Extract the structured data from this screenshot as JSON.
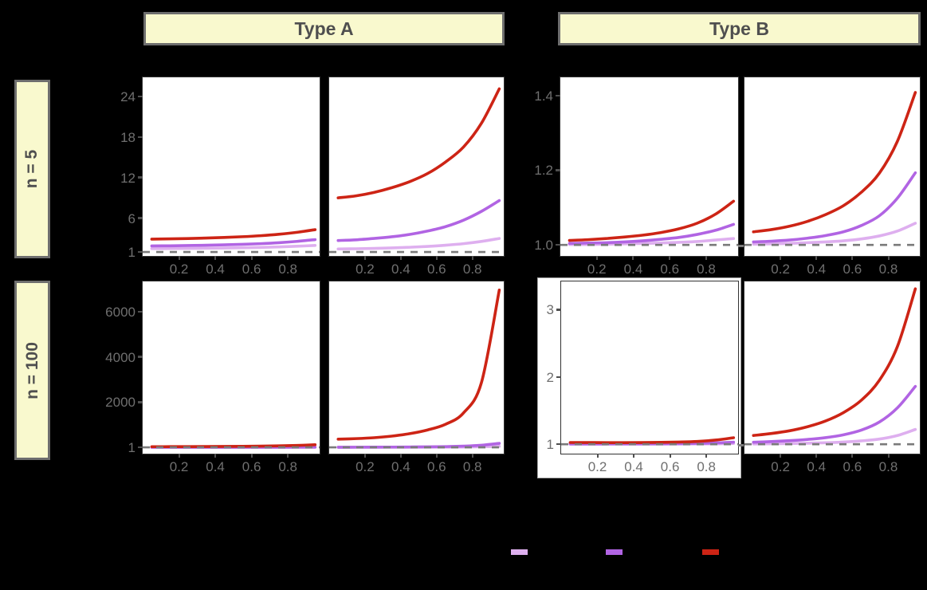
{
  "figure": {
    "background": "#000000",
    "col_strips": [
      {
        "label": "Type A"
      },
      {
        "label": "Type B"
      }
    ],
    "row_strips": [
      {
        "label": "n = 5"
      },
      {
        "label": "n = 100"
      }
    ]
  },
  "colors": {
    "strip_fill": "#f9f9ce",
    "strip_border": "#6e6e6e",
    "strip_text": "#4f4f4f",
    "panel_bg": "#ffffff",
    "panel_border": "#333333",
    "tick_text": "#6f6f6f",
    "tick_mark": "#4f4f4f",
    "ref_line": "#7a7a7a",
    "series_light_purple": "#deafef",
    "series_purple": "#b164e3",
    "series_red": "#cd2415"
  },
  "axes": {
    "xlim": [
      0,
      0.975
    ],
    "x_ticks": [
      0.2,
      0.4,
      0.6,
      0.8
    ],
    "x_tick_labels": [
      "0.2",
      "0.4",
      "0.6",
      "0.8"
    ]
  },
  "legend": {
    "items": [
      {
        "name": "series-light-purple",
        "color": "#deafef"
      },
      {
        "name": "series-purple",
        "color": "#b164e3"
      },
      {
        "name": "series-red",
        "color": "#cd2415"
      }
    ]
  },
  "chart_data": [
    {
      "id": "A1",
      "type": "line",
      "facet_row": "n = 5",
      "facet_col": "Type A",
      "ylim": [
        0.42,
        26.8
      ],
      "ref_line": 1,
      "yticks": [
        {
          "v": 1,
          "label": "1"
        },
        {
          "v": 6,
          "label": "6"
        },
        {
          "v": 12,
          "label": "12"
        },
        {
          "v": 18,
          "label": "18"
        },
        {
          "v": 24,
          "label": "24"
        }
      ],
      "x": [
        0.05,
        0.15,
        0.25,
        0.35,
        0.45,
        0.55,
        0.65,
        0.75,
        0.85,
        0.95
      ],
      "series": [
        {
          "name": "series-light-purple",
          "color": "#deafef",
          "values": [
            1.5,
            1.51,
            1.53,
            1.56,
            1.59,
            1.63,
            1.68,
            1.75,
            1.85,
            1.97
          ]
        },
        {
          "name": "series-purple",
          "color": "#b164e3",
          "values": [
            1.9,
            1.92,
            1.96,
            2.0,
            2.06,
            2.13,
            2.23,
            2.37,
            2.57,
            2.83
          ]
        },
        {
          "name": "series-red",
          "color": "#cd2415",
          "values": [
            2.9,
            2.94,
            2.99,
            3.06,
            3.15,
            3.26,
            3.41,
            3.62,
            3.91,
            4.3
          ]
        }
      ]
    },
    {
      "id": "A2",
      "type": "line",
      "facet_row": "n = 5",
      "facet_col": "Type A",
      "ylim": [
        0.42,
        26.8
      ],
      "ref_line": 1,
      "yticks": [],
      "x": [
        0.05,
        0.15,
        0.25,
        0.35,
        0.45,
        0.55,
        0.65,
        0.75,
        0.85,
        0.95
      ],
      "series": [
        {
          "name": "series-light-purple",
          "color": "#deafef",
          "values": [
            1.45,
            1.48,
            1.53,
            1.6,
            1.7,
            1.83,
            2.0,
            2.23,
            2.56,
            3.0
          ]
        },
        {
          "name": "series-purple",
          "color": "#b164e3",
          "values": [
            2.7,
            2.8,
            3.0,
            3.25,
            3.6,
            4.1,
            4.75,
            5.7,
            7.0,
            8.6
          ]
        },
        {
          "name": "series-red",
          "color": "#cd2415",
          "values": [
            9.0,
            9.3,
            9.8,
            10.5,
            11.4,
            12.6,
            14.3,
            16.5,
            20.0,
            25.1
          ]
        }
      ]
    },
    {
      "id": "B1",
      "type": "line",
      "facet_row": "n = 5",
      "facet_col": "Type B",
      "ylim": [
        0.9705,
        1.4485
      ],
      "ref_line": 1,
      "yticks": [
        {
          "v": 1.0,
          "label": "1.0"
        },
        {
          "v": 1.2,
          "label": "1.2"
        },
        {
          "v": 1.4,
          "label": "1.4"
        }
      ],
      "x": [
        0.05,
        0.15,
        0.25,
        0.35,
        0.45,
        0.55,
        0.65,
        0.75,
        0.85,
        0.95
      ],
      "series": [
        {
          "name": "series-light-purple",
          "color": "#deafef",
          "values": [
            1.001,
            1.001,
            1.002,
            1.003,
            1.004,
            1.005,
            1.007,
            1.009,
            1.013,
            1.017
          ]
        },
        {
          "name": "series-purple",
          "color": "#b164e3",
          "values": [
            1.004,
            1.005,
            1.006,
            1.008,
            1.011,
            1.015,
            1.02,
            1.028,
            1.039,
            1.055
          ]
        },
        {
          "name": "series-red",
          "color": "#cd2415",
          "values": [
            1.012,
            1.014,
            1.017,
            1.021,
            1.026,
            1.033,
            1.043,
            1.058,
            1.082,
            1.117
          ]
        }
      ]
    },
    {
      "id": "B2",
      "type": "line",
      "facet_row": "n = 5",
      "facet_col": "Type B",
      "ylim": [
        0.9705,
        1.4485
      ],
      "ref_line": 1,
      "yticks": [],
      "x": [
        0.05,
        0.15,
        0.25,
        0.35,
        0.45,
        0.55,
        0.65,
        0.75,
        0.85,
        0.95
      ],
      "series": [
        {
          "name": "series-light-purple",
          "color": "#deafef",
          "values": [
            1.002,
            1.003,
            1.004,
            1.006,
            1.008,
            1.011,
            1.016,
            1.024,
            1.037,
            1.058
          ]
        },
        {
          "name": "series-purple",
          "color": "#b164e3",
          "values": [
            1.008,
            1.01,
            1.013,
            1.018,
            1.025,
            1.035,
            1.052,
            1.078,
            1.125,
            1.193
          ]
        },
        {
          "name": "series-red",
          "color": "#cd2415",
          "values": [
            1.035,
            1.041,
            1.05,
            1.063,
            1.081,
            1.105,
            1.141,
            1.192,
            1.277,
            1.408
          ]
        }
      ]
    },
    {
      "id": "A3",
      "type": "line",
      "facet_row": "n = 100",
      "facet_col": "Type A",
      "ylim": [
        -280,
        7330
      ],
      "ref_line": 1,
      "yticks": [
        {
          "v": 1,
          "label": "1"
        },
        {
          "v": 2000,
          "label": "2000"
        },
        {
          "v": 4000,
          "label": "4000"
        },
        {
          "v": 6000,
          "label": "6000"
        }
      ],
      "x": [
        0.05,
        0.15,
        0.25,
        0.35,
        0.45,
        0.55,
        0.65,
        0.75,
        0.85,
        0.95
      ],
      "series": [
        {
          "name": "series-light-purple",
          "color": "#deafef",
          "values": [
            1,
            1,
            1,
            1,
            1,
            2,
            2,
            2,
            3,
            3
          ]
        },
        {
          "name": "series-purple",
          "color": "#b164e3",
          "values": [
            2,
            2,
            2,
            3,
            3,
            4,
            4,
            5,
            6,
            8
          ]
        },
        {
          "name": "series-red",
          "color": "#cd2415",
          "values": [
            28,
            29,
            31,
            34,
            38,
            44,
            52,
            64,
            84,
            115
          ]
        }
      ]
    },
    {
      "id": "A4",
      "type": "line",
      "facet_row": "n = 100",
      "facet_col": "Type A",
      "ylim": [
        -280,
        7330
      ],
      "ref_line": 1,
      "yticks": [],
      "x": [
        0.05,
        0.15,
        0.25,
        0.35,
        0.45,
        0.55,
        0.65,
        0.75,
        0.85,
        0.95
      ],
      "series": [
        {
          "name": "series-light-purple",
          "color": "#deafef",
          "values": [
            1,
            2,
            2,
            3,
            4,
            6,
            9,
            14,
            24,
            45
          ]
        },
        {
          "name": "series-purple",
          "color": "#b164e3",
          "values": [
            5,
            6,
            8,
            11,
            15,
            21,
            32,
            52,
            92,
            175
          ]
        },
        {
          "name": "series-red",
          "color": "#cd2415",
          "values": [
            360,
            385,
            425,
            495,
            605,
            770,
            1020,
            1520,
            2850,
            6950
          ]
        }
      ]
    },
    {
      "id": "B3",
      "type": "line",
      "facet_row": "n = 100",
      "facet_col": "Type B",
      "inset": true,
      "ylim": [
        0.86,
        3.42
      ],
      "ref_line": 1,
      "yticks": [
        {
          "v": 1,
          "label": "1"
        },
        {
          "v": 2,
          "label": "2"
        },
        {
          "v": 3,
          "label": "3"
        }
      ],
      "x": [
        0.05,
        0.15,
        0.25,
        0.35,
        0.45,
        0.55,
        0.65,
        0.75,
        0.85,
        0.95
      ],
      "series": [
        {
          "name": "series-light-purple",
          "color": "#deafef",
          "values": [
            1.001,
            1.001,
            1.001,
            1.001,
            1.002,
            1.002,
            1.003,
            1.004,
            1.006,
            1.012
          ]
        },
        {
          "name": "series-purple",
          "color": "#b164e3",
          "values": [
            1.005,
            1.005,
            1.005,
            1.006,
            1.006,
            1.007,
            1.009,
            1.013,
            1.019,
            1.031
          ]
        },
        {
          "name": "series-red",
          "color": "#cd2415",
          "values": [
            1.026,
            1.025,
            1.024,
            1.024,
            1.025,
            1.028,
            1.033,
            1.042,
            1.062,
            1.097
          ]
        }
      ]
    },
    {
      "id": "B4",
      "type": "line",
      "facet_row": "n = 100",
      "facet_col": "Type B",
      "ylim": [
        0.86,
        3.42
      ],
      "ref_line": 1,
      "yticks": [],
      "x": [
        0.05,
        0.15,
        0.25,
        0.35,
        0.45,
        0.55,
        0.65,
        0.75,
        0.85,
        0.95
      ],
      "series": [
        {
          "name": "series-light-purple",
          "color": "#deafef",
          "values": [
            1.005,
            1.007,
            1.01,
            1.015,
            1.022,
            1.033,
            1.05,
            1.077,
            1.13,
            1.22
          ]
        },
        {
          "name": "series-purple",
          "color": "#b164e3",
          "values": [
            1.03,
            1.04,
            1.053,
            1.071,
            1.098,
            1.14,
            1.21,
            1.33,
            1.54,
            1.86
          ]
        },
        {
          "name": "series-red",
          "color": "#cd2415",
          "values": [
            1.13,
            1.16,
            1.2,
            1.26,
            1.345,
            1.47,
            1.655,
            1.95,
            2.45,
            3.31
          ]
        }
      ]
    }
  ]
}
